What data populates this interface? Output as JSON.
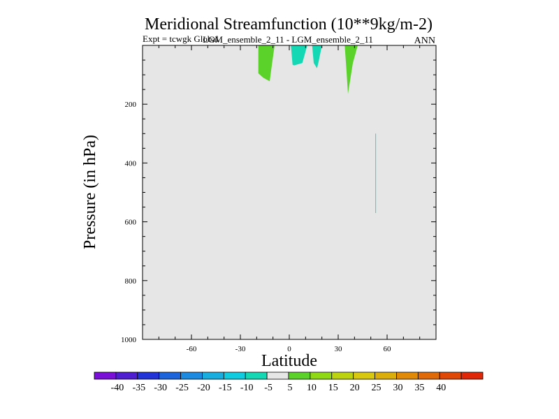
{
  "chart_data": {
    "type": "heatmap",
    "title": "Meridional Streamfunction (10**9kg/m-2)",
    "subtitle_left": "Expt = tcwgk Global",
    "subtitle_center": "LGM_ensemble_2_11 - LGM_ensemble_2_11",
    "subtitle_right": "ANN",
    "xlabel": "Latitude",
    "ylabel": "Pressure (in hPa)",
    "xlim": [
      -90,
      90
    ],
    "ylim": [
      1000,
      0
    ],
    "x_ticks": [
      -60,
      -30,
      0,
      30,
      60
    ],
    "x_tick_labels": [
      "-60",
      "-30",
      "0",
      "30",
      "60"
    ],
    "y_ticks": [
      200,
      400,
      600,
      800,
      1000
    ],
    "y_tick_labels": [
      "200",
      "400",
      "600",
      "800",
      "1000"
    ],
    "background_value_range": [
      -5,
      5
    ],
    "contour_regions": [
      {
        "name": "region-green-a",
        "level": "5 to 10",
        "color": "#5ad22a",
        "polygon": [
          [
            -19,
            0
          ],
          [
            -9,
            0
          ],
          [
            -11,
            80
          ],
          [
            -12,
            122
          ],
          [
            -16,
            110
          ],
          [
            -19,
            95
          ]
        ]
      },
      {
        "name": "region-teal-a",
        "level": "-10 to -5",
        "color": "#14d7b4",
        "polygon": [
          [
            1,
            0
          ],
          [
            11,
            0
          ],
          [
            8,
            60
          ],
          [
            3,
            68
          ],
          [
            2,
            66
          ]
        ]
      },
      {
        "name": "region-teal-b",
        "level": "-10 to -5",
        "color": "#14d7b4",
        "polygon": [
          [
            14,
            0
          ],
          [
            20,
            0
          ],
          [
            18,
            55
          ],
          [
            17,
            78
          ],
          [
            15,
            60
          ]
        ]
      },
      {
        "name": "region-green-b",
        "level": "5 to 10",
        "color": "#5ad22a",
        "polygon": [
          [
            34,
            0
          ],
          [
            42,
            0
          ],
          [
            39,
            60
          ],
          [
            36,
            165
          ],
          [
            35,
            80
          ]
        ]
      },
      {
        "name": "region-teal-c",
        "level": "-10 to -5",
        "color": "#14d7b4",
        "polygon": [
          [
            52.8,
            300
          ],
          [
            53.2,
            300
          ],
          [
            53.2,
            570
          ],
          [
            52.8,
            570
          ]
        ]
      }
    ],
    "colorbar": {
      "colors": [
        "#7a10d8",
        "#4f1ed0",
        "#2234d8",
        "#1c64dc",
        "#1c8ae0",
        "#18aee0",
        "#10cce0",
        "#14d7b4",
        "#e6e6e6",
        "#5ad22a",
        "#8ed814",
        "#bcd410",
        "#d8c810",
        "#dcae0c",
        "#e08a08",
        "#e06a08",
        "#e04808",
        "#e02808"
      ],
      "labels": [
        "-40",
        "-35",
        "-30",
        "-25",
        "-20",
        "-15",
        "-10",
        "-5",
        "5",
        "10",
        "15",
        "20",
        "25",
        "30",
        "35",
        "40"
      ]
    }
  }
}
